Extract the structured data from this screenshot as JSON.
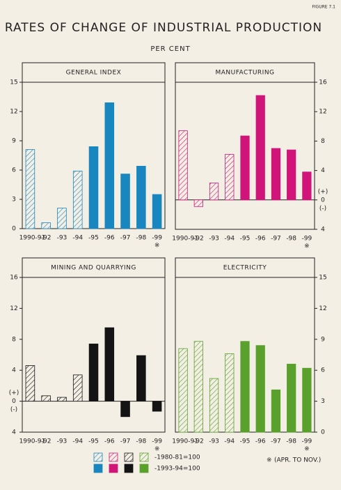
{
  "figure_label": "FIGURE 7.1",
  "title": "RATES OF CHANGE OF INDUSTRIAL PRODUCTION",
  "subtitle": "PER CENT",
  "note_marker": "※",
  "footnote": "(APR. TO NOV.)",
  "legend": [
    {
      "label": "-1980-81=100",
      "style": "hatched"
    },
    {
      "label": "-1993-94=100",
      "style": "solid"
    }
  ],
  "chart_data": [
    {
      "type": "bar",
      "title": "GENERAL INDEX",
      "color": "#1a86c0",
      "axis_side": "left",
      "categories": [
        "1990-91",
        "-92",
        "-93",
        "-94",
        "-95",
        "-96",
        "-97",
        "-98",
        "-99"
      ],
      "series": [
        {
          "style": "hatched",
          "values": [
            8.1,
            0.6,
            2.1,
            5.9,
            null,
            null,
            null,
            null,
            null
          ]
        },
        {
          "style": "solid",
          "values": [
            null,
            null,
            null,
            null,
            8.4,
            12.9,
            5.6,
            6.4,
            3.5
          ]
        }
      ],
      "ylim": [
        0,
        15
      ],
      "yticks": [
        0,
        3,
        6,
        9,
        12,
        15
      ]
    },
    {
      "type": "bar",
      "title": "MANUFACTURING",
      "color": "#d0147a",
      "axis_side": "right",
      "categories": [
        "1990-91",
        "-92",
        "-93",
        "-94",
        "-95",
        "-96",
        "-97",
        "-98",
        "-99"
      ],
      "series": [
        {
          "style": "hatched",
          "values": [
            9.4,
            -0.9,
            2.3,
            6.2,
            null,
            null,
            null,
            null,
            null
          ]
        },
        {
          "style": "solid",
          "values": [
            null,
            null,
            null,
            null,
            8.7,
            14.2,
            7.0,
            6.8,
            3.8
          ]
        }
      ],
      "ylim": [
        -4,
        16
      ],
      "yticks": [
        {
          "value": -4,
          "label": "4"
        },
        0,
        4,
        8,
        12,
        16
      ],
      "sign_labels": [
        "(+)",
        "(-)"
      ]
    },
    {
      "type": "bar",
      "title": "MINING AND QUARRYING",
      "color": "#141414",
      "axis_side": "left",
      "categories": [
        "1990-91",
        "-92",
        "-93",
        "-94",
        "-95",
        "-96",
        "-97",
        "-98",
        "-99"
      ],
      "series": [
        {
          "style": "hatched",
          "values": [
            4.6,
            0.7,
            0.5,
            3.4,
            null,
            null,
            null,
            null,
            null
          ]
        },
        {
          "style": "solid",
          "values": [
            null,
            null,
            null,
            null,
            7.4,
            9.5,
            -2.0,
            5.9,
            -1.3
          ]
        }
      ],
      "ylim": [
        -4,
        16
      ],
      "yticks": [
        {
          "value": -4,
          "label": "4"
        },
        0,
        4,
        8,
        12,
        16
      ],
      "sign_labels": [
        "(+)",
        "(-)"
      ]
    },
    {
      "type": "bar",
      "title": "ELECTRICITY",
      "color": "#5aa02c",
      "axis_side": "right",
      "categories": [
        "1990-91",
        "-92",
        "-93",
        "-94",
        "-95",
        "-96",
        "-97",
        "-98",
        "-99"
      ],
      "series": [
        {
          "style": "hatched",
          "values": [
            8.1,
            8.8,
            5.2,
            7.6,
            null,
            null,
            null,
            null,
            null
          ]
        },
        {
          "style": "solid",
          "values": [
            null,
            null,
            null,
            null,
            8.8,
            8.4,
            4.1,
            6.6,
            6.2
          ]
        }
      ],
      "ylim": [
        0,
        15
      ],
      "yticks": [
        0,
        3,
        6,
        9,
        12,
        15
      ]
    }
  ]
}
